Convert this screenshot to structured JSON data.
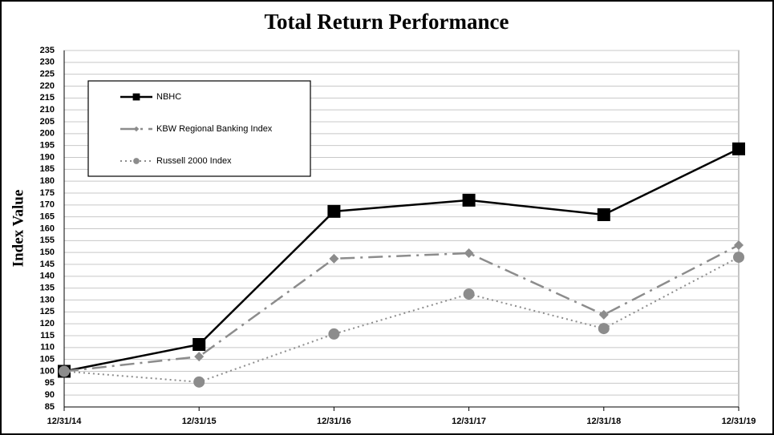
{
  "chart_data": {
    "type": "line",
    "title": "Total Return Performance",
    "y_label": "Index Value",
    "categories": [
      "12/31/14",
      "12/31/15",
      "12/31/16",
      "12/31/17",
      "12/31/18",
      "12/31/19"
    ],
    "series": [
      {
        "name": "NBHC",
        "color": "#000000",
        "values": [
          100,
          111.3,
          167.3,
          172,
          165.9,
          193.6
        ]
      },
      {
        "name": "KBW Regional Banking Index",
        "color": "#8c8c8c",
        "values": [
          100,
          106.2,
          147.4,
          149.7,
          123.8,
          153.1
        ]
      },
      {
        "name": "Russell 2000 Index",
        "color": "#8c8c8c",
        "values": [
          100,
          95.5,
          115.7,
          132.5,
          118,
          148
        ]
      }
    ],
    "ylim": [
      85,
      235
    ],
    "yticks": [
      85,
      90,
      95,
      100,
      105,
      110,
      115,
      120,
      125,
      130,
      135,
      140,
      145,
      150,
      155,
      160,
      165,
      170,
      175,
      180,
      185,
      190,
      195,
      200,
      205,
      210,
      215,
      220,
      225,
      230,
      235
    ],
    "grid": true
  }
}
